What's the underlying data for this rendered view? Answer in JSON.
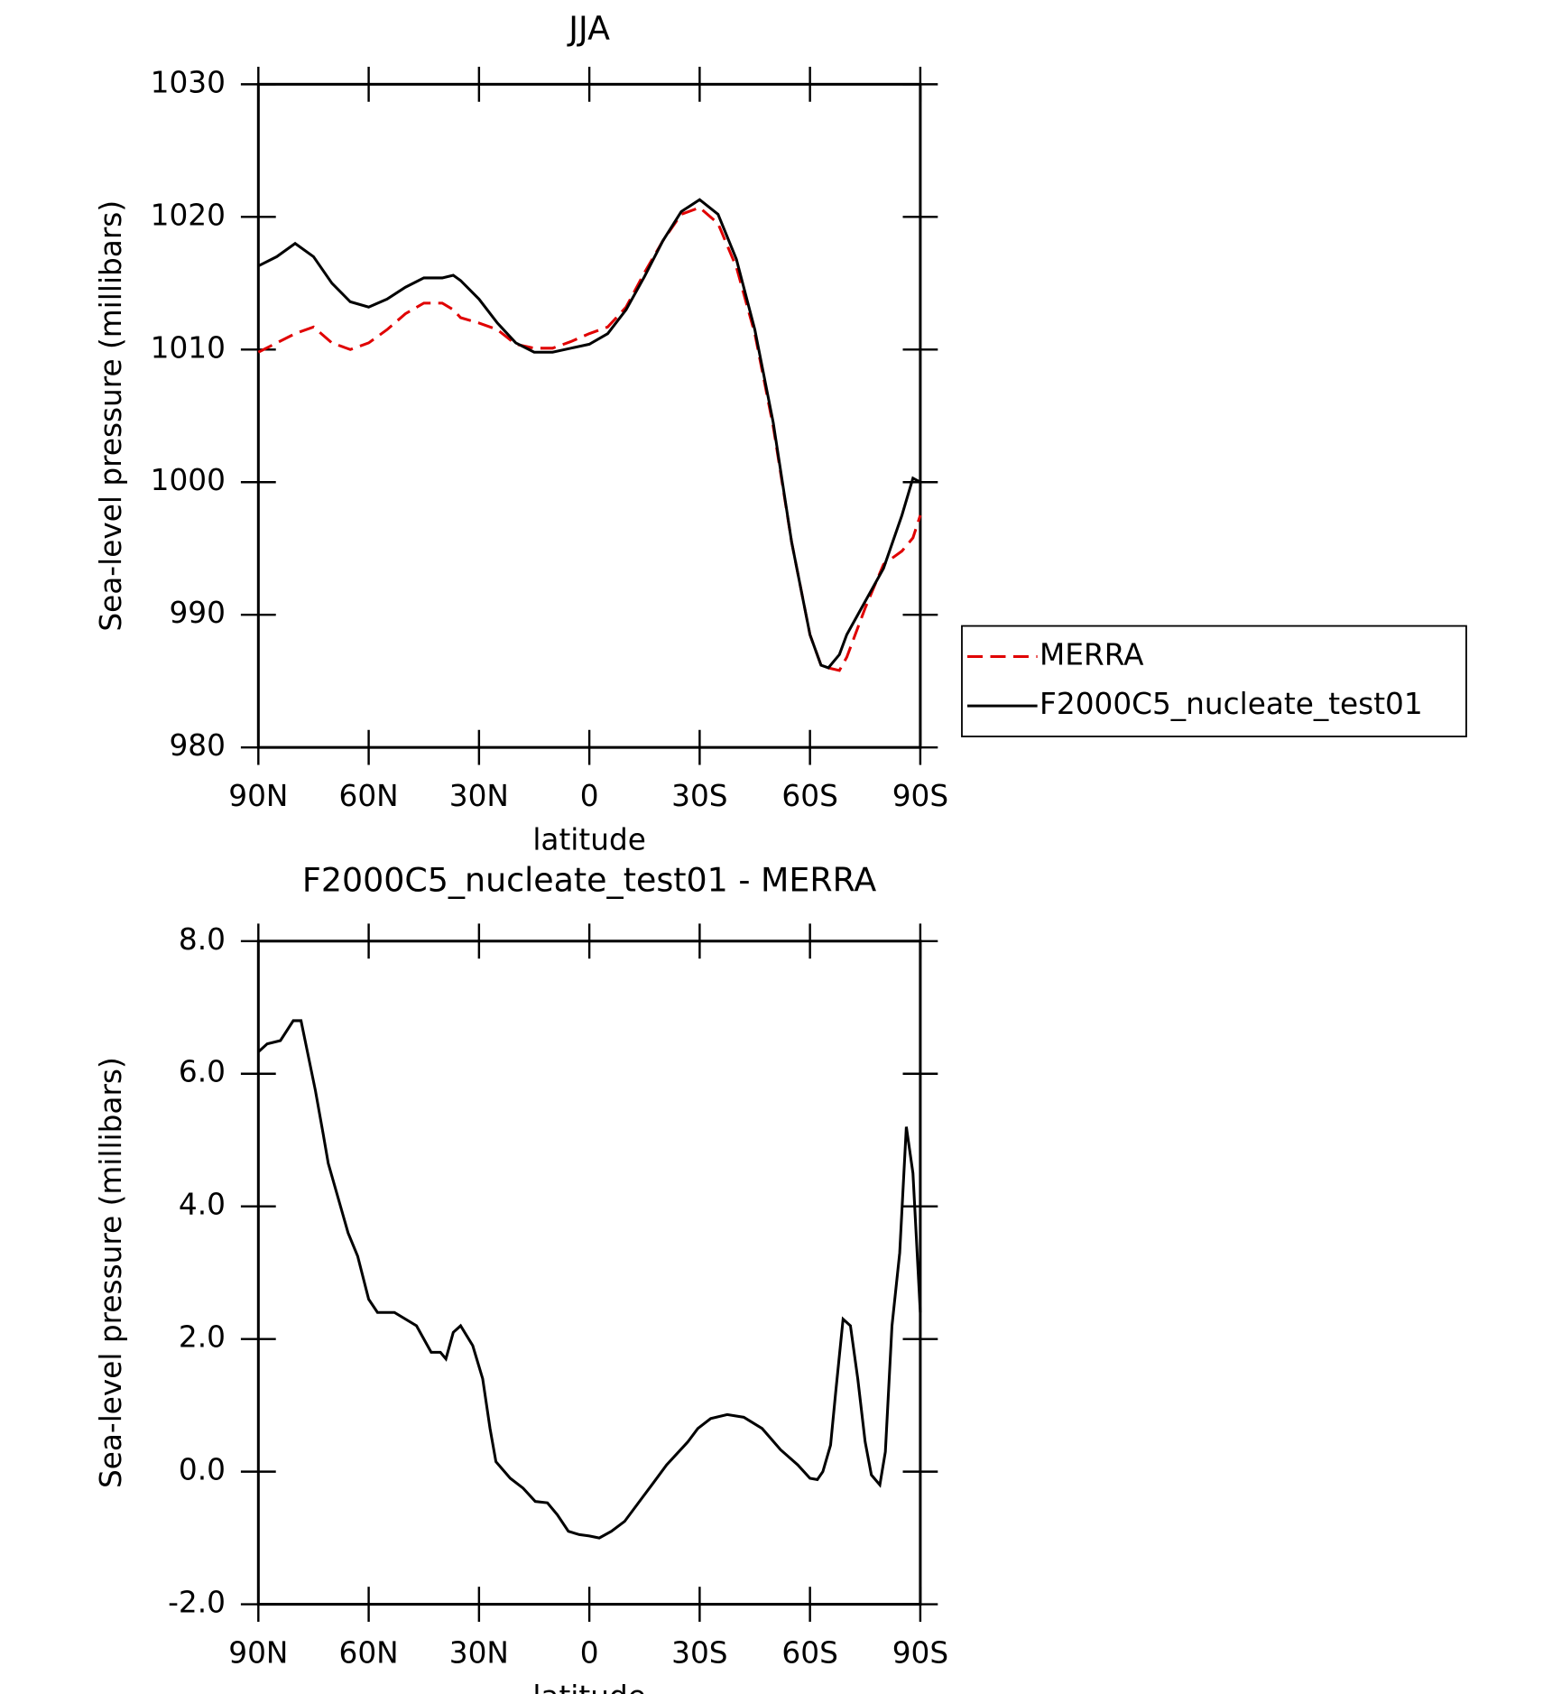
{
  "chart_data": [
    {
      "type": "line",
      "title": "JJA",
      "x_label": "latitude",
      "y_label": "Sea-level pressure (millibars)",
      "xlim": [
        90,
        -90
      ],
      "xticks": [
        {
          "value": 90,
          "label": "90N"
        },
        {
          "value": 60,
          "label": "60N"
        },
        {
          "value": 30,
          "label": "30N"
        },
        0,
        {
          "value": -30,
          "label": "30S"
        },
        {
          "value": -60,
          "label": "60S"
        },
        {
          "value": -90,
          "label": "90S"
        }
      ],
      "ylim": [
        980,
        1030
      ],
      "yticks": [
        980,
        990,
        1000,
        1010,
        1020,
        1030
      ],
      "legend": "right",
      "x": [
        90,
        85,
        80,
        75,
        70,
        65,
        60,
        55,
        50,
        45,
        40,
        37,
        35,
        30,
        25,
        20,
        15,
        10,
        5,
        0,
        -5,
        -10,
        -15,
        -20,
        -25,
        -30,
        -35,
        -40,
        -45,
        -50,
        -55,
        -60,
        -63,
        -65,
        -68,
        -70,
        -75,
        -80,
        -85,
        -88,
        -90
      ],
      "series": [
        {
          "name": "MERRA",
          "color": "#e00000",
          "linestyle": "dashed",
          "values": [
            1009.8,
            1010.5,
            1011.2,
            1011.7,
            1010.5,
            1010.0,
            1010.5,
            1011.5,
            1012.7,
            1013.5,
            1013.5,
            1013.0,
            1012.4,
            1012.0,
            1011.5,
            1010.4,
            1010.1,
            1010.1,
            1010.6,
            1011.2,
            1011.7,
            1013.2,
            1015.8,
            1018.2,
            1020.2,
            1020.7,
            1019.5,
            1016.2,
            1011.2,
            1004.2,
            995.5,
            988.5,
            986.2,
            986.0,
            985.8,
            986.8,
            990.5,
            993.8,
            994.8,
            995.8,
            997.5
          ]
        },
        {
          "name": "F2000C5_nucleate_test01",
          "color": "#000000",
          "linestyle": "solid",
          "values": [
            1016.3,
            1017.0,
            1018.0,
            1017.0,
            1015.0,
            1013.6,
            1013.2,
            1013.8,
            1014.7,
            1015.4,
            1015.4,
            1015.6,
            1015.2,
            1013.8,
            1012.0,
            1010.5,
            1009.8,
            1009.8,
            1010.1,
            1010.4,
            1011.2,
            1013.0,
            1015.5,
            1018.2,
            1020.4,
            1021.3,
            1020.2,
            1016.8,
            1011.5,
            1004.5,
            995.5,
            988.5,
            986.2,
            986.0,
            987.0,
            988.5,
            991.0,
            993.5,
            997.5,
            1000.3,
            1000.0
          ]
        }
      ]
    },
    {
      "type": "line",
      "title": "F2000C5_nucleate_test01 - MERRA",
      "x_label": "latitude",
      "y_label": "Sea-level pressure (millibars)",
      "xlim": [
        90,
        -90
      ],
      "xticks": [
        {
          "value": 90,
          "label": "90N"
        },
        {
          "value": 60,
          "label": "60N"
        },
        {
          "value": 30,
          "label": "30N"
        },
        0,
        {
          "value": -30,
          "label": "30S"
        },
        {
          "value": -60,
          "label": "60S"
        },
        {
          "value": -90,
          "label": "90S"
        }
      ],
      "ylim": [
        -2,
        8
      ],
      "yticks": [
        {
          "value": -2,
          "label": "-2.0"
        },
        {
          "value": 0,
          "label": "0.0"
        },
        {
          "value": 2,
          "label": "2.0"
        },
        {
          "value": 4,
          "label": "4.0"
        },
        {
          "value": 6,
          "label": "6.0"
        },
        {
          "value": 8,
          "label": "8.0"
        }
      ],
      "x": [
        90,
        87.6,
        84,
        80.5,
        78.4,
        74.5,
        72.4,
        71,
        65.6,
        63,
        60,
        57.6,
        53,
        47,
        43,
        40.5,
        39,
        37,
        35,
        31.7,
        29,
        27,
        25.4,
        21.5,
        18,
        14.7,
        11.4,
        8.7,
        5.7,
        2.7,
        0,
        -2.7,
        -6,
        -9.6,
        -14.3,
        -17,
        -21,
        -26.8,
        -29.5,
        -33,
        -37.5,
        -42,
        -47,
        -52,
        -56.7,
        -60,
        -62,
        -63.5,
        -65.6,
        -67,
        -69,
        -71,
        -73,
        -75,
        -76.7,
        -79,
        -80.5,
        -82.3,
        -84.4,
        -86.2,
        -88,
        -90
      ],
      "series": [
        {
          "name": "F2000C5_nucleate_test01",
          "color": "#000000",
          "linestyle": "solid",
          "values": [
            6.33,
            6.45,
            6.5,
            6.8,
            6.8,
            5.75,
            5.1,
            4.65,
            3.6,
            3.25,
            2.6,
            2.4,
            2.4,
            2.2,
            1.8,
            1.8,
            1.7,
            2.1,
            2.2,
            1.9,
            1.4,
            0.65,
            0.15,
            -0.1,
            -0.25,
            -0.45,
            -0.47,
            -0.65,
            -0.9,
            -0.95,
            -0.97,
            -1.0,
            -0.9,
            -0.75,
            -0.4,
            -0.2,
            0.1,
            0.45,
            0.65,
            0.8,
            0.86,
            0.82,
            0.65,
            0.33,
            0.1,
            -0.1,
            -0.12,
            0.0,
            0.4,
            1.2,
            2.3,
            2.2,
            1.4,
            0.45,
            -0.05,
            -0.2,
            0.3,
            2.2,
            3.3,
            5.2,
            4.5,
            2.4
          ]
        }
      ]
    }
  ]
}
